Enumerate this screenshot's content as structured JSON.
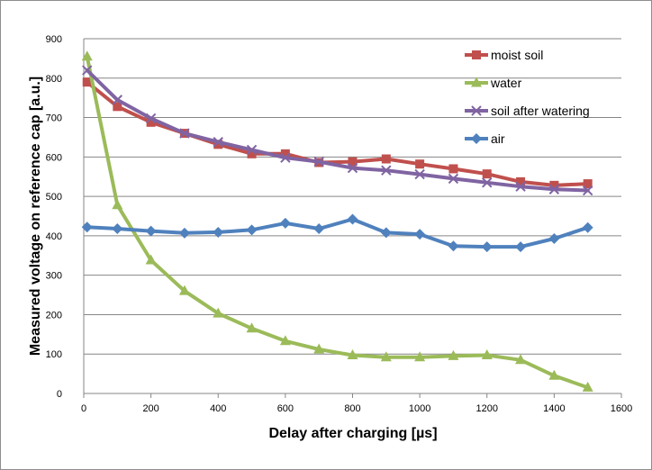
{
  "chart_data": {
    "type": "line",
    "xlabel": "Delay after charging [µs]",
    "ylabel": "Measured voltage on reference cap [a.u.]",
    "xlim": [
      0,
      1600
    ],
    "ylim": [
      0,
      900
    ],
    "x_ticks": [
      0,
      200,
      400,
      600,
      800,
      1000,
      1200,
      1400,
      1600
    ],
    "y_ticks": [
      0,
      100,
      200,
      300,
      400,
      500,
      600,
      700,
      800,
      900
    ],
    "grid": "horizontal major gridlines",
    "legend_position": "top-right",
    "x": [
      10,
      100,
      200,
      300,
      400,
      500,
      600,
      700,
      800,
      900,
      1000,
      1100,
      1200,
      1300,
      1400,
      1500
    ],
    "series": [
      {
        "name": "moist soil",
        "color": "#c0504d",
        "marker": "square",
        "values": [
          790,
          728,
          688,
          660,
          632,
          608,
          608,
          586,
          588,
          595,
          582,
          570,
          557,
          537,
          528,
          532
        ]
      },
      {
        "name": "water",
        "color": "#9bbb59",
        "marker": "triangle",
        "values": [
          855,
          478,
          338,
          260,
          203,
          165,
          133,
          112,
          97,
          92,
          92,
          95,
          97,
          85,
          45,
          15
        ]
      },
      {
        "name": "soil after watering",
        "color": "#8064a2",
        "marker": "x",
        "values": [
          820,
          745,
          698,
          660,
          638,
          618,
          598,
          588,
          572,
          566,
          556,
          545,
          535,
          525,
          518,
          515
        ]
      },
      {
        "name": "air",
        "color": "#4f81bd",
        "marker": "diamond",
        "values": [
          422,
          418,
          412,
          407,
          409,
          415,
          432,
          418,
          442,
          408,
          404,
          374,
          372,
          372,
          393,
          421
        ]
      }
    ]
  }
}
